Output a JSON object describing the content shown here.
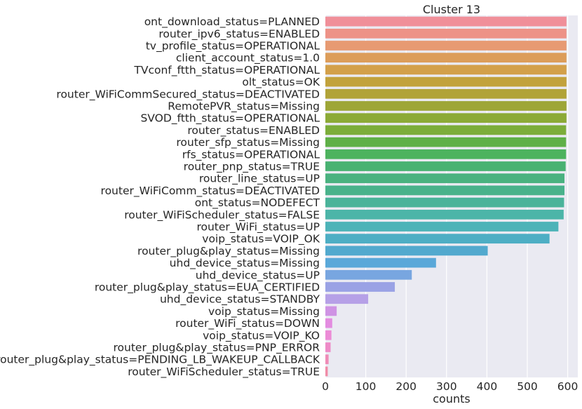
{
  "chart_data": {
    "type": "bar",
    "orientation": "horizontal",
    "title": "Cluster 13",
    "xlabel": "counts",
    "ylabel": "",
    "xlim": [
      0,
      625
    ],
    "xticks": [
      "0",
      "100",
      "200",
      "300",
      "400",
      "500",
      "600"
    ],
    "grid": true,
    "background": "#eaeaf2",
    "categories": [
      "ont_download_status=PLANNED",
      "router_ipv6_status=ENABLED",
      "tv_profile_status=OPERATIONAL",
      "client_account_status=1.0",
      "TVconf_ftth_status=OPERATIONAL",
      "olt_status=OK",
      "router_WiFiCommSecured_status=DEACTIVATED",
      "RemotePVR_status=Missing",
      "SVOD_ftth_status=OPERATIONAL",
      "router_status=ENABLED",
      "router_sfp_status=Missing",
      "rfs_status=OPERATIONAL",
      "router_pnp_status=TRUE",
      "router_line_status=UP",
      "router_WiFiComm_status=DEACTIVATED",
      "ont_status=NODEFECT",
      "router_WiFiScheduler_status=FALSE",
      "router_WiFi_status=UP",
      "voip_status=VOIP_OK",
      "router_plug&play_status=Missing",
      "uhd_device_status=Missing",
      "uhd_device_status=UP",
      "router_plug&play_status=EUA_CERTIFIED",
      "uhd_device_status=STANDBY",
      "voip_status=Missing",
      "router_WiFi_status=DOWN",
      "voip_status=VOIP_KO",
      "router_plug&play_status=PNP_ERROR",
      "router_plug&play_status=PENDING_LB_WAKEUP_CALLBACK",
      "router_WiFiScheduler_status=TRUE"
    ],
    "values": [
      597,
      597,
      597,
      597,
      597,
      597,
      597,
      597,
      597,
      596,
      596,
      596,
      595,
      592,
      592,
      591,
      590,
      577,
      555,
      402,
      274,
      214,
      172,
      106,
      28,
      17,
      15,
      13,
      8,
      6
    ],
    "colors": [
      "#f08f99",
      "#ed9287",
      "#e79a72",
      "#dc9d5a",
      "#d3a04a",
      "#c2a23c",
      "#b1a338",
      "#9ea637",
      "#8caa37",
      "#7cad3a",
      "#5fb047",
      "#4db35e",
      "#49b272",
      "#4ab280",
      "#49b28b",
      "#4ab39a",
      "#4cb5a8",
      "#4db3b8",
      "#4daec4",
      "#52a9ce",
      "#5aa8d9",
      "#78a6e0",
      "#9aa2e5",
      "#b6a0e7",
      "#cf93e4",
      "#e38ce0",
      "#ec8bd6",
      "#ee8bc7",
      "#ef8cb7",
      "#f08ca7"
    ]
  }
}
